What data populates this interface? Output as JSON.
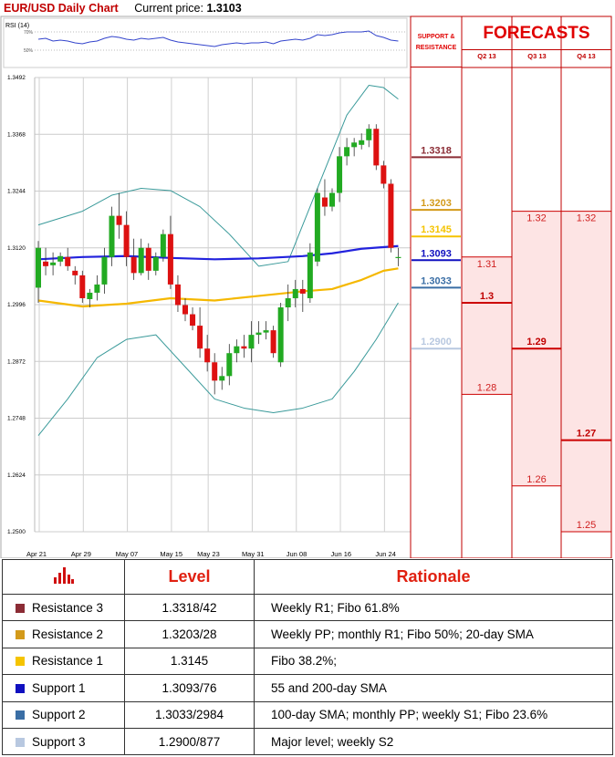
{
  "header": {
    "title": "EUR/USD Daily Chart",
    "price_label": "Current price:",
    "price_value": "1.3103"
  },
  "rsi": {
    "label": "RSI (14)",
    "levels": [
      "70%",
      "50%"
    ]
  },
  "forecast_panel": {
    "title": "FORECASTS",
    "sr_title_line1": "SUPPORT &",
    "sr_title_line2": "RESISTANCE",
    "quarters": [
      "Q2 13",
      "Q3 13",
      "Q4 13"
    ]
  },
  "colors": {
    "up_candle": "#22aa22",
    "down_candle": "#dd1111",
    "sma_blue": "#2222dd",
    "sma_yellow": "#f5b800",
    "bollinger": "#3a9a9a",
    "forecast_line": "#cc0000",
    "forecast_fill": "#fde4e4",
    "r3": "#8b2c35",
    "r2": "#d39a1a",
    "r1": "#f5c400",
    "s1": "#1010c0",
    "s2": "#3a6ea5",
    "s3": "#b8c8e0"
  },
  "chart_data": {
    "type": "candlestick",
    "ylim": [
      1.25,
      1.3492
    ],
    "ytick_labels": [
      "1.3492",
      "1.3368",
      "1.3244",
      "1.3120",
      "1.2996",
      "1.2872",
      "1.2748",
      "1.2624",
      "1.2500"
    ],
    "xtick_labels": [
      "Apr 21",
      "Apr 29",
      "May 07",
      "May 15",
      "May 23",
      "May 31",
      "Jun 08",
      "Jun 16",
      "Jun 24"
    ],
    "candles": [
      [
        1.3033,
        1.3135,
        1.3,
        1.312
      ],
      [
        1.309,
        1.312,
        1.306,
        1.308
      ],
      [
        1.3082,
        1.311,
        1.306,
        1.3088
      ],
      [
        1.309,
        1.311,
        1.308,
        1.3102
      ],
      [
        1.31,
        1.312,
        1.307,
        1.308
      ],
      [
        1.307,
        1.308,
        1.304,
        1.306
      ],
      [
        1.306,
        1.307,
        1.3,
        1.301
      ],
      [
        1.3008,
        1.303,
        1.299,
        1.3022
      ],
      [
        1.3022,
        1.306,
        1.3005,
        1.304
      ],
      [
        1.304,
        1.312,
        1.302,
        1.31
      ],
      [
        1.31,
        1.321,
        1.308,
        1.319
      ],
      [
        1.319,
        1.324,
        1.314,
        1.317
      ],
      [
        1.317,
        1.32,
        1.308,
        1.31
      ],
      [
        1.31,
        1.314,
        1.305,
        1.3065
      ],
      [
        1.3065,
        1.314,
        1.306,
        1.312
      ],
      [
        1.312,
        1.313,
        1.305,
        1.307
      ],
      [
        1.307,
        1.311,
        1.306,
        1.31
      ],
      [
        1.31,
        1.316,
        1.309,
        1.315
      ],
      [
        1.315,
        1.319,
        1.303,
        1.304
      ],
      [
        1.304,
        1.306,
        1.298,
        1.2995
      ],
      [
        1.2995,
        1.301,
        1.296,
        1.2975
      ],
      [
        1.2975,
        1.299,
        1.294,
        1.295
      ],
      [
        1.295,
        1.299,
        1.288,
        1.29
      ],
      [
        1.29,
        1.293,
        1.285,
        1.287
      ],
      [
        1.287,
        1.289,
        1.28,
        1.283
      ],
      [
        1.283,
        1.286,
        1.281,
        1.284
      ],
      [
        1.284,
        1.291,
        1.282,
        1.289
      ],
      [
        1.289,
        1.292,
        1.287,
        1.2905
      ],
      [
        1.2905,
        1.293,
        1.288,
        1.29
      ],
      [
        1.29,
        1.296,
        1.287,
        1.293
      ],
      [
        1.293,
        1.296,
        1.291,
        1.2935
      ],
      [
        1.2935,
        1.296,
        1.292,
        1.294
      ],
      [
        1.294,
        1.295,
        1.288,
        1.289
      ],
      [
        1.287,
        1.3,
        1.286,
        1.299
      ],
      [
        1.299,
        1.304,
        1.296,
        1.301
      ],
      [
        1.301,
        1.305,
        1.299,
        1.303
      ],
      [
        1.303,
        1.305,
        1.298,
        1.302
      ],
      [
        1.301,
        1.313,
        1.3,
        1.311
      ],
      [
        1.309,
        1.325,
        1.308,
        1.324
      ],
      [
        1.323,
        1.327,
        1.319,
        1.321
      ],
      [
        1.321,
        1.325,
        1.32,
        1.324
      ],
      [
        1.324,
        1.334,
        1.322,
        1.332
      ],
      [
        1.332,
        1.336,
        1.33,
        1.334
      ],
      [
        1.334,
        1.336,
        1.332,
        1.335
      ],
      [
        1.3345,
        1.337,
        1.3335,
        1.3355
      ],
      [
        1.3355,
        1.339,
        1.334,
        1.338
      ],
      [
        1.338,
        1.339,
        1.329,
        1.33
      ],
      [
        1.33,
        1.331,
        1.325,
        1.326
      ],
      [
        1.326,
        1.327,
        1.311,
        1.312
      ],
      [
        1.31,
        1.312,
        1.308,
        1.31
      ]
    ],
    "sma_blue": [
      [
        0,
        1.3095
      ],
      [
        6,
        1.31
      ],
      [
        12,
        1.3102
      ],
      [
        18,
        1.3098
      ],
      [
        24,
        1.3095
      ],
      [
        30,
        1.3097
      ],
      [
        36,
        1.3102
      ],
      [
        40,
        1.3108
      ],
      [
        44,
        1.3118
      ],
      [
        49,
        1.3124
      ]
    ],
    "sma_yellow": [
      [
        0,
        1.3005
      ],
      [
        6,
        1.2992
      ],
      [
        12,
        1.2998
      ],
      [
        18,
        1.301
      ],
      [
        24,
        1.3005
      ],
      [
        30,
        1.3015
      ],
      [
        36,
        1.3025
      ],
      [
        40,
        1.303
      ],
      [
        44,
        1.305
      ],
      [
        47,
        1.307
      ],
      [
        49,
        1.3075
      ]
    ],
    "bollinger_upper": [
      [
        0,
        1.317
      ],
      [
        6,
        1.32
      ],
      [
        10,
        1.3235
      ],
      [
        14,
        1.325
      ],
      [
        18,
        1.3245
      ],
      [
        22,
        1.321
      ],
      [
        26,
        1.315
      ],
      [
        30,
        1.308
      ],
      [
        34,
        1.309
      ],
      [
        38,
        1.325
      ],
      [
        42,
        1.341
      ],
      [
        45,
        1.3475
      ],
      [
        47,
        1.347
      ],
      [
        49,
        1.3445
      ]
    ],
    "bollinger_lower": [
      [
        0,
        1.271
      ],
      [
        4,
        1.279
      ],
      [
        8,
        1.288
      ],
      [
        12,
        1.292
      ],
      [
        16,
        1.293
      ],
      [
        20,
        1.286
      ],
      [
        24,
        1.279
      ],
      [
        28,
        1.277
      ],
      [
        32,
        1.276
      ],
      [
        36,
        1.277
      ],
      [
        40,
        1.279
      ],
      [
        43,
        1.285
      ],
      [
        46,
        1.292
      ],
      [
        49,
        1.3
      ]
    ],
    "rsi_values": [
      62,
      63,
      60,
      61,
      60,
      58,
      57,
      59,
      60,
      63,
      65,
      64,
      62,
      61,
      63,
      62,
      63,
      64,
      61,
      59,
      58,
      57,
      56,
      55,
      54,
      56,
      57,
      58,
      57,
      58,
      58,
      59,
      57,
      60,
      61,
      62,
      61,
      63,
      67,
      66,
      67,
      69,
      70,
      70,
      70,
      71,
      66,
      64,
      61,
      60
    ],
    "support_resistance": [
      {
        "key": "r3",
        "value": "1.3318",
        "level": 1.3318
      },
      {
        "key": "r2",
        "value": "1.3203",
        "level": 1.3203
      },
      {
        "key": "r1",
        "value": "1.3145",
        "level": 1.3145
      },
      {
        "key": "s1",
        "value": "1.3093",
        "level": 1.3093
      },
      {
        "key": "s2",
        "value": "1.3033",
        "level": 1.3033
      },
      {
        "key": "s3",
        "value": "1.2900",
        "level": 1.29
      }
    ],
    "forecasts": [
      {
        "quarter": "Q2 13",
        "high": 1.31,
        "high_label": "1.31",
        "mid": 1.3,
        "mid_label": "1.3",
        "low": 1.28,
        "low_label": "1.28"
      },
      {
        "quarter": "Q3 13",
        "high": 1.32,
        "high_label": "1.32",
        "mid": 1.29,
        "mid_label": "1.29",
        "low": 1.26,
        "low_label": "1.26"
      },
      {
        "quarter": "Q4 13",
        "high": 1.32,
        "high_label": "1.32",
        "mid": 1.27,
        "mid_label": "1.27",
        "low": 1.25,
        "low_label": "1.25"
      }
    ]
  },
  "table": {
    "headers": [
      "Level",
      "Rationale"
    ],
    "rows": [
      {
        "name": "Resistance 3",
        "level": "1.3318/42",
        "rationale": "Weekly R1; Fibo 61.8%"
      },
      {
        "name": "Resistance 2",
        "level": "1.3203/28",
        "rationale": "Weekly PP; monthly R1; Fibo 50%; 20-day SMA"
      },
      {
        "name": "Resistance 1",
        "level": "1.3145",
        "rationale": "Fibo 38.2%;"
      },
      {
        "name": "Support 1",
        "level": "1.3093/76",
        "rationale": "55 and 200-day SMA"
      },
      {
        "name": "Support 2",
        "level": "1.3033/2984",
        "rationale": "100-day SMA; monthly PP; weekly S1; Fibo 23.6%"
      },
      {
        "name": "Support 3",
        "level": "1.2900/877",
        "rationale": "Major level; weekly S2"
      }
    ]
  }
}
